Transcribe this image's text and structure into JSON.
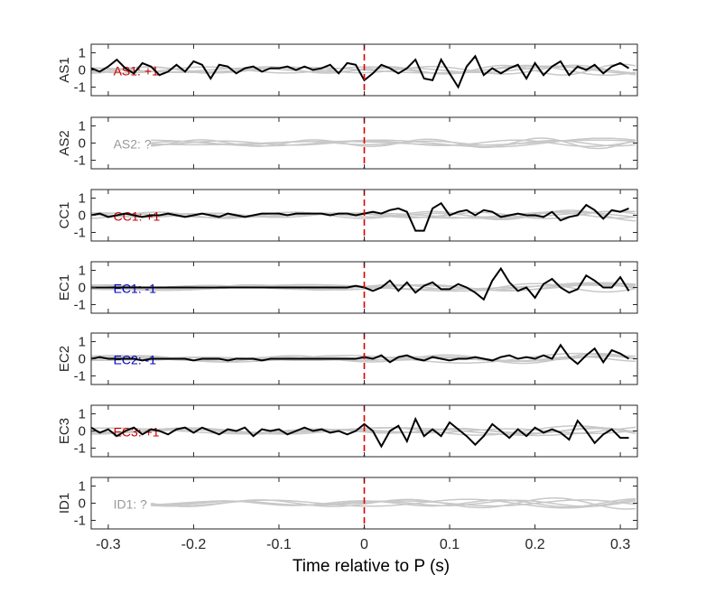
{
  "chart_data": {
    "type": "line",
    "xlabel": "Time relative to P (s)",
    "xlim": [
      -0.32,
      0.32
    ],
    "ylim": [
      -1.5,
      1.5
    ],
    "xticks": [
      -0.3,
      -0.2,
      -0.1,
      0,
      0.1,
      0.2,
      0.3
    ],
    "xtick_labels": [
      "-0.3",
      "-0.2",
      "-0.1",
      "0",
      "0.1",
      "0.2",
      "0.3"
    ],
    "yticks": [
      1,
      0,
      -1
    ],
    "ytick_labels": [
      "1",
      "0",
      "-1"
    ],
    "marker_x": 0,
    "colors": {
      "red": "#cc0000",
      "blue": "#0000cc",
      "gray": "#999999",
      "trace": "#000000",
      "background": "#c8c8c8",
      "marker": "#dd0000"
    },
    "panels": [
      {
        "station": "AS1",
        "annotation": "AS1: +1",
        "annotation_color": "red",
        "trace_x": [
          -0.32,
          -0.31,
          -0.3,
          -0.29,
          -0.28,
          -0.27,
          -0.26,
          -0.25,
          -0.24,
          -0.23,
          -0.22,
          -0.21,
          -0.2,
          -0.19,
          -0.18,
          -0.17,
          -0.16,
          -0.15,
          -0.14,
          -0.13,
          -0.12,
          -0.11,
          -0.1,
          -0.09,
          -0.08,
          -0.07,
          -0.06,
          -0.05,
          -0.04,
          -0.03,
          -0.02,
          -0.01,
          0.0,
          0.01,
          0.02,
          0.03,
          0.04,
          0.05,
          0.06,
          0.07,
          0.08,
          0.09,
          0.1,
          0.11,
          0.12,
          0.13,
          0.14,
          0.15,
          0.16,
          0.17,
          0.18,
          0.19,
          0.2,
          0.21,
          0.22,
          0.23,
          0.24,
          0.25,
          0.26,
          0.27,
          0.28,
          0.29,
          0.3,
          0.31
        ],
        "trace_y": [
          0.1,
          -0.1,
          0.2,
          0.6,
          0.1,
          -0.2,
          0.4,
          0.2,
          -0.3,
          -0.1,
          0.3,
          -0.1,
          0.5,
          0.3,
          -0.5,
          0.3,
          0.2,
          -0.2,
          0.1,
          0.2,
          -0.1,
          0.1,
          0.1,
          0.2,
          0.0,
          0.2,
          0.0,
          0.1,
          0.3,
          -0.2,
          0.4,
          0.3,
          -0.6,
          -0.2,
          0.3,
          0.1,
          -0.2,
          0.1,
          0.6,
          -0.5,
          -0.6,
          0.6,
          -0.2,
          -1.0,
          0.2,
          0.8,
          -0.3,
          0.1,
          -0.2,
          0.1,
          0.3,
          -0.5,
          0.4,
          -0.3,
          0.2,
          0.5,
          -0.3,
          0.2,
          0.0,
          0.3,
          -0.2,
          0.2,
          0.4,
          0.1
        ]
      },
      {
        "station": "AS2",
        "annotation": "AS2: ?",
        "annotation_color": "gray",
        "trace_x": [],
        "trace_y": []
      },
      {
        "station": "CC1",
        "annotation": "CC1: +1",
        "annotation_color": "red",
        "trace_x": [
          -0.32,
          -0.31,
          -0.3,
          -0.29,
          -0.28,
          -0.27,
          -0.26,
          -0.25,
          -0.24,
          -0.23,
          -0.22,
          -0.21,
          -0.2,
          -0.19,
          -0.18,
          -0.17,
          -0.16,
          -0.15,
          -0.14,
          -0.13,
          -0.12,
          -0.11,
          -0.1,
          -0.09,
          -0.08,
          -0.07,
          -0.06,
          -0.05,
          -0.04,
          -0.03,
          -0.02,
          -0.01,
          0.0,
          0.01,
          0.02,
          0.03,
          0.04,
          0.05,
          0.06,
          0.07,
          0.08,
          0.09,
          0.1,
          0.11,
          0.12,
          0.13,
          0.14,
          0.15,
          0.16,
          0.17,
          0.18,
          0.19,
          0.2,
          0.21,
          0.22,
          0.23,
          0.24,
          0.25,
          0.26,
          0.27,
          0.28,
          0.29,
          0.3,
          0.31
        ],
        "trace_y": [
          0.0,
          0.1,
          -0.1,
          0.0,
          0.1,
          0.0,
          -0.1,
          0.0,
          0.0,
          0.1,
          0.0,
          -0.1,
          0.0,
          0.1,
          0.0,
          -0.1,
          0.1,
          0.0,
          -0.1,
          0.0,
          0.1,
          0.1,
          0.1,
          0.0,
          0.1,
          0.1,
          0.1,
          0.1,
          0.0,
          0.1,
          0.1,
          0.0,
          0.1,
          0.2,
          0.1,
          0.3,
          0.4,
          0.2,
          -0.9,
          -0.9,
          0.4,
          0.7,
          0.0,
          0.2,
          0.3,
          0.0,
          0.3,
          0.2,
          -0.1,
          0.0,
          0.1,
          0.0,
          0.0,
          -0.1,
          0.2,
          -0.3,
          -0.1,
          0.0,
          0.6,
          0.3,
          -0.2,
          0.3,
          0.2,
          0.4
        ]
      },
      {
        "station": "EC1",
        "annotation": "EC1: -1",
        "annotation_color": "blue",
        "trace_x": [
          -0.32,
          -0.31,
          -0.3,
          -0.29,
          -0.28,
          -0.27,
          -0.26,
          -0.25,
          -0.24,
          -0.23,
          -0.22,
          -0.21,
          -0.2,
          -0.19,
          -0.18,
          -0.17,
          -0.16,
          -0.15,
          -0.14,
          -0.13,
          -0.12,
          -0.11,
          -0.1,
          -0.09,
          -0.08,
          -0.07,
          -0.06,
          -0.05,
          -0.04,
          -0.03,
          -0.02,
          -0.01,
          0.0,
          0.01,
          0.02,
          0.03,
          0.04,
          0.05,
          0.06,
          0.07,
          0.08,
          0.09,
          0.1,
          0.11,
          0.12,
          0.13,
          0.14,
          0.15,
          0.16,
          0.17,
          0.18,
          0.19,
          0.2,
          0.21,
          0.22,
          0.23,
          0.24,
          0.25,
          0.26,
          0.27,
          0.28,
          0.29,
          0.3,
          0.31
        ],
        "trace_y": [
          0.0,
          0.0,
          0.0,
          0.0,
          0.0,
          0.0,
          0.0,
          0.0,
          0.0,
          0.0,
          0.0,
          0.0,
          0.0,
          0.0,
          0.0,
          0.0,
          0.0,
          0.0,
          0.0,
          0.0,
          0.0,
          0.0,
          0.0,
          0.0,
          0.0,
          0.0,
          0.0,
          0.0,
          0.0,
          0.0,
          0.0,
          0.1,
          0.0,
          -0.2,
          0.0,
          0.4,
          -0.2,
          0.3,
          -0.3,
          0.1,
          0.3,
          -0.1,
          -0.1,
          0.2,
          0.0,
          -0.3,
          -0.7,
          0.4,
          1.1,
          0.3,
          -0.2,
          0.0,
          -0.6,
          0.2,
          0.5,
          0.0,
          -0.3,
          -0.1,
          0.7,
          0.4,
          0.0,
          0.0,
          0.6,
          -0.2
        ]
      },
      {
        "station": "EC2",
        "annotation": "EC2: -1",
        "annotation_color": "blue",
        "trace_x": [
          -0.32,
          -0.31,
          -0.3,
          -0.29,
          -0.28,
          -0.27,
          -0.26,
          -0.25,
          -0.24,
          -0.23,
          -0.22,
          -0.21,
          -0.2,
          -0.19,
          -0.18,
          -0.17,
          -0.16,
          -0.15,
          -0.14,
          -0.13,
          -0.12,
          -0.11,
          -0.1,
          -0.09,
          -0.08,
          -0.07,
          -0.06,
          -0.05,
          -0.04,
          -0.03,
          -0.02,
          -0.01,
          0.0,
          0.01,
          0.02,
          0.03,
          0.04,
          0.05,
          0.06,
          0.07,
          0.08,
          0.09,
          0.1,
          0.11,
          0.12,
          0.13,
          0.14,
          0.15,
          0.16,
          0.17,
          0.18,
          0.19,
          0.2,
          0.21,
          0.22,
          0.23,
          0.24,
          0.25,
          0.26,
          0.27,
          0.28,
          0.29,
          0.3,
          0.31
        ],
        "trace_y": [
          0.0,
          0.1,
          0.0,
          0.0,
          0.0,
          0.0,
          -0.1,
          0.0,
          0.0,
          0.0,
          0.0,
          0.0,
          -0.1,
          0.0,
          0.0,
          0.0,
          -0.1,
          0.0,
          0.0,
          0.0,
          -0.1,
          0.0,
          0.0,
          0.0,
          0.0,
          0.0,
          0.0,
          0.0,
          0.0,
          0.0,
          0.0,
          0.0,
          0.1,
          0.0,
          0.2,
          -0.2,
          0.1,
          0.2,
          0.0,
          -0.1,
          0.1,
          0.0,
          -0.1,
          0.0,
          0.0,
          0.1,
          0.0,
          -0.1,
          0.1,
          0.2,
          0.0,
          0.1,
          0.0,
          0.2,
          0.0,
          0.8,
          0.1,
          -0.3,
          0.2,
          0.6,
          -0.2,
          0.5,
          0.3,
          0.0
        ]
      },
      {
        "station": "EC3",
        "annotation": "EC3: +1",
        "annotation_color": "red",
        "trace_x": [
          -0.32,
          -0.31,
          -0.3,
          -0.29,
          -0.28,
          -0.27,
          -0.26,
          -0.25,
          -0.24,
          -0.23,
          -0.22,
          -0.21,
          -0.2,
          -0.19,
          -0.18,
          -0.17,
          -0.16,
          -0.15,
          -0.14,
          -0.13,
          -0.12,
          -0.11,
          -0.1,
          -0.09,
          -0.08,
          -0.07,
          -0.06,
          -0.05,
          -0.04,
          -0.03,
          -0.02,
          -0.01,
          0.0,
          0.01,
          0.02,
          0.03,
          0.04,
          0.05,
          0.06,
          0.07,
          0.08,
          0.09,
          0.1,
          0.11,
          0.12,
          0.13,
          0.14,
          0.15,
          0.16,
          0.17,
          0.18,
          0.19,
          0.2,
          0.21,
          0.22,
          0.23,
          0.24,
          0.25,
          0.26,
          0.27,
          0.28,
          0.29,
          0.3,
          0.31
        ],
        "trace_y": [
          0.2,
          -0.1,
          0.1,
          -0.3,
          0.0,
          0.2,
          -0.2,
          0.1,
          0.0,
          -0.2,
          0.1,
          0.2,
          -0.1,
          0.2,
          0.0,
          -0.2,
          0.1,
          0.0,
          0.2,
          -0.3,
          0.1,
          0.0,
          0.1,
          -0.2,
          0.0,
          0.2,
          0.0,
          0.1,
          -0.1,
          0.0,
          -0.2,
          0.0,
          0.4,
          0.0,
          -0.9,
          0.0,
          0.3,
          -0.6,
          0.7,
          -0.3,
          0.1,
          -0.3,
          0.5,
          0.1,
          -0.3,
          -0.8,
          -0.3,
          0.4,
          0.0,
          -0.4,
          0.1,
          -0.3,
          0.2,
          -0.1,
          0.1,
          -0.1,
          -0.5,
          0.6,
          0.0,
          -0.7,
          -0.2,
          0.1,
          -0.4,
          -0.4
        ]
      },
      {
        "station": "ID1",
        "annotation": "ID1: ?",
        "annotation_color": "gray",
        "trace_x": [],
        "trace_y": []
      }
    ]
  }
}
